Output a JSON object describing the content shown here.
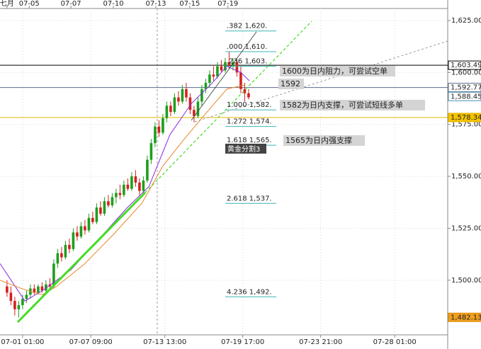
{
  "chart_data": {
    "type": "candlestick",
    "xlim": [
      -1.8,
      113.1
    ],
    "top_ticks": [
      {
        "value": 0,
        "label": "七月"
      },
      {
        "value": 5.7,
        "label": "07-05"
      },
      {
        "value": 16.4,
        "label": "07-07"
      },
      {
        "value": 27.3,
        "label": "07-10"
      },
      {
        "value": 38.2,
        "label": "07-13"
      },
      {
        "value": 46.9,
        "label": "07-15"
      },
      {
        "value": 56.7,
        "label": "07-19"
      }
    ],
    "xticks": [
      {
        "value": 4,
        "label": "07-01 01:00"
      },
      {
        "value": 21.5,
        "label": "07-07 09:00"
      },
      {
        "value": 40.5,
        "label": "07-13 13:00"
      },
      {
        "value": 60.5,
        "label": "07-19 17:00"
      },
      {
        "value": 80.5,
        "label": "07-23 21:00"
      },
      {
        "value": 99.5,
        "label": "07-28 01:00"
      }
    ],
    "ylim": [
      1473.7,
      1630.8
    ],
    "yticks": [
      {
        "value": 1625,
        "label": "1,625.00"
      },
      {
        "value": 1600,
        "label": "1,600.00"
      },
      {
        "value": 1575,
        "label": "1,575.00"
      },
      {
        "value": 1550,
        "label": "1,550.00"
      },
      {
        "value": 1525,
        "label": "1,525.00"
      },
      {
        "value": 1500,
        "label": "1,500.00"
      }
    ],
    "grid": true,
    "up_color": "#1e9e1e",
    "down_color": "#d42020",
    "x": [
      0,
      1,
      2,
      3,
      4,
      5,
      6,
      7,
      8,
      9,
      10,
      11,
      12,
      13,
      14,
      15,
      16,
      17,
      18,
      19,
      20,
      21,
      22,
      23,
      24,
      25,
      26,
      27,
      28,
      29,
      30,
      31,
      32,
      33,
      34,
      35,
      36,
      37,
      38,
      39,
      40,
      41,
      42,
      43,
      44,
      45,
      46,
      47,
      48,
      49,
      50,
      51,
      52,
      53,
      54,
      55,
      56,
      57,
      58,
      59,
      60,
      61,
      62
    ],
    "open": [
      1497,
      1494,
      1490,
      1486,
      1488,
      1491,
      1493,
      1496,
      1494,
      1497,
      1495,
      1498,
      1497,
      1508,
      1513,
      1511,
      1517,
      1515,
      1523,
      1521,
      1526,
      1524,
      1530,
      1528,
      1535,
      1532,
      1538,
      1536,
      1540,
      1542,
      1541,
      1546,
      1544,
      1550,
      1547,
      1543,
      1548,
      1558,
      1566,
      1574,
      1571,
      1578,
      1584,
      1581,
      1588,
      1586,
      1592,
      1588,
      1582,
      1579,
      1586,
      1592,
      1595,
      1599,
      1598,
      1603,
      1601,
      1605,
      1603,
      1605,
      1600,
      1592,
      1590
    ],
    "high": [
      1500,
      1497,
      1492,
      1490,
      1493,
      1495,
      1498,
      1498,
      1498,
      1499,
      1500,
      1501,
      1510,
      1515,
      1516,
      1519,
      1520,
      1525,
      1526,
      1528,
      1529,
      1532,
      1533,
      1537,
      1538,
      1540,
      1541,
      1542,
      1544,
      1546,
      1548,
      1549,
      1552,
      1553,
      1549,
      1550,
      1560,
      1568,
      1576,
      1577,
      1580,
      1586,
      1586,
      1590,
      1591,
      1594,
      1595,
      1590,
      1584,
      1588,
      1594,
      1597,
      1601,
      1603,
      1605,
      1606,
      1607,
      1610,
      1607,
      1606,
      1603,
      1595,
      1592
    ],
    "low": [
      1492,
      1488,
      1483,
      1482,
      1486,
      1489,
      1491,
      1493,
      1493,
      1494,
      1494,
      1495,
      1496,
      1506,
      1509,
      1510,
      1513,
      1514,
      1519,
      1520,
      1522,
      1523,
      1527,
      1527,
      1531,
      1531,
      1535,
      1535,
      1537,
      1539,
      1540,
      1543,
      1543,
      1545,
      1541,
      1542,
      1547,
      1556,
      1564,
      1569,
      1570,
      1576,
      1579,
      1580,
      1584,
      1585,
      1586,
      1580,
      1576,
      1578,
      1584,
      1590,
      1593,
      1596,
      1597,
      1600,
      1600,
      1602,
      1601,
      1598,
      1590,
      1586,
      1587
    ],
    "close": [
      1494,
      1490,
      1486,
      1488,
      1491,
      1493,
      1496,
      1494,
      1497,
      1495,
      1498,
      1497,
      1508,
      1513,
      1511,
      1517,
      1515,
      1523,
      1521,
      1526,
      1524,
      1530,
      1528,
      1535,
      1532,
      1538,
      1536,
      1540,
      1542,
      1541,
      1546,
      1544,
      1550,
      1547,
      1543,
      1548,
      1558,
      1566,
      1574,
      1571,
      1578,
      1584,
      1581,
      1588,
      1586,
      1592,
      1588,
      1582,
      1579,
      1586,
      1592,
      1595,
      1599,
      1598,
      1603,
      1601,
      1605,
      1603,
      1605,
      1600,
      1592,
      1590,
      1588
    ],
    "ma_lines": [
      {
        "color": "#8a2be2",
        "x": [
          -1.8,
          4.6,
          9.1,
          16.4,
          23.7,
          30.9,
          36.4,
          41.8,
          47.3,
          52.7,
          56.4,
          60,
          62.2
        ],
        "values": [
          1508,
          1490,
          1495,
          1505,
          1520,
          1535,
          1545,
          1570,
          1585,
          1595,
          1603,
          1600,
          1596
        ]
      },
      {
        "color": "#e8882a",
        "x": [
          -1.8,
          3.7,
          9.1,
          12.7,
          20,
          27.3,
          34.6,
          40,
          45.5,
          50.9,
          56.4,
          60.9
        ],
        "values": [
          1500,
          1496,
          1493,
          1497,
          1508,
          1522,
          1537,
          1555,
          1568,
          1580,
          1592,
          1594
        ]
      }
    ],
    "price_lines": [
      {
        "value": 1603.49,
        "label": "1,603.49",
        "color": "#000000",
        "tag_color": "#ffffff",
        "line": true
      },
      {
        "value": 1592.77,
        "label": "1,592.77",
        "color": "#5a6e8c",
        "tag_color": "#ffffff",
        "line": true
      },
      {
        "value": 1588.45,
        "label": "1,588.45",
        "color": "#4a90b0",
        "tag_color": "#ffffff",
        "line": false
      },
      {
        "value": 1578.34,
        "label": "1,578.34",
        "color": "#e8b400",
        "tag_color": "#f5c400",
        "line": true
      },
      {
        "value": 1482.13,
        "label": "1,482.13",
        "color": "#e08a00",
        "tag_color": "#f0a020",
        "line": false
      }
    ],
    "fibonacci": [
      {
        "value": 1620,
        "label": ".382 1,620."
      },
      {
        "value": 1610,
        "label": ".000 1,610."
      },
      {
        "value": 1603,
        "label": ".236 1,603."
      },
      {
        "value": 1582,
        "label": "1.000 1,582."
      },
      {
        "value": 1574,
        "label": "1.272 1,574."
      },
      {
        "value": 1565,
        "label": "1.618 1,565."
      },
      {
        "value": 1537,
        "label": "2.618 1,537."
      },
      {
        "value": 1492,
        "label": "4.236 1,492."
      }
    ],
    "annotations": [
      "1600为日内阻力，可尝试空单",
      "1592",
      "1582为日内支撑，可尝试短线多单",
      "1565为日内强支撑",
      "黄金分割3"
    ]
  }
}
